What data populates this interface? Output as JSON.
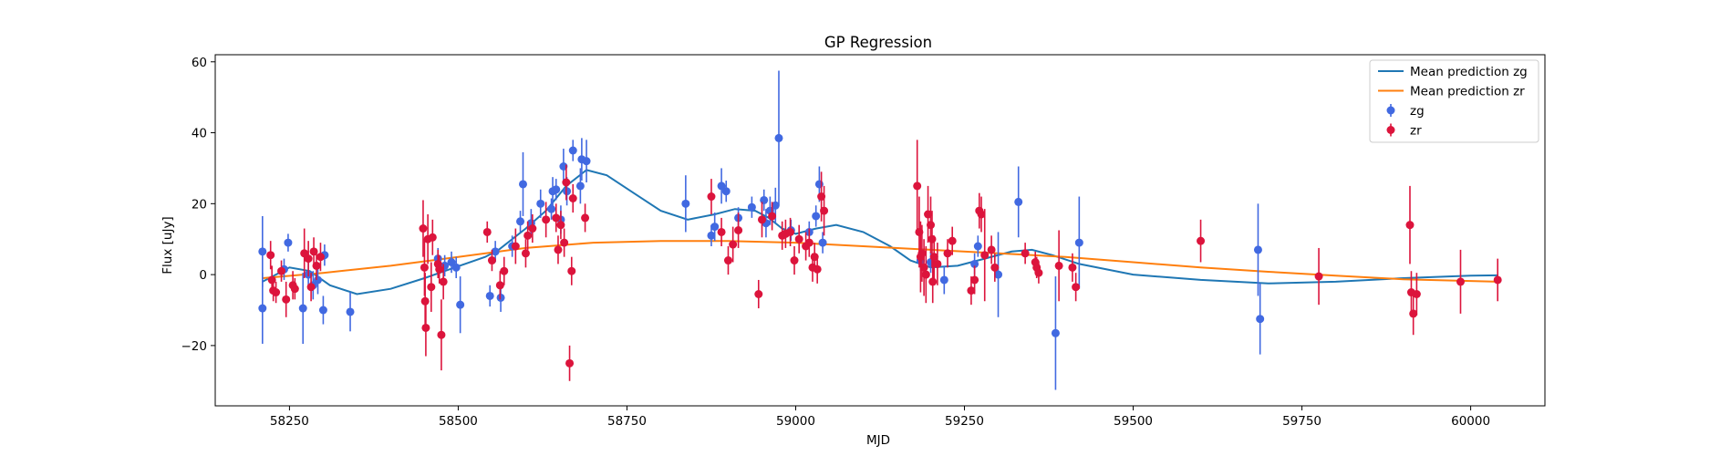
{
  "chart_data": {
    "type": "scatter",
    "title": "GP Regression",
    "xlabel": "MJD",
    "ylabel": "Flux [uJy]",
    "xlim": [
      58140,
      60110
    ],
    "ylim": [
      -37,
      62
    ],
    "xticks": [
      58250,
      58500,
      58750,
      59000,
      59250,
      59500,
      59750,
      60000
    ],
    "yticks": [
      -20,
      0,
      20,
      40,
      60
    ],
    "grid": false,
    "legend_position": "top-right",
    "colors": {
      "zg_points": "#4169e1",
      "zr_points": "#dc143c",
      "zg_mean": "#1f77b4",
      "zr_mean": "#ff7f0e"
    },
    "legend": [
      {
        "label": "Mean prediction zg",
        "kind": "line",
        "color": "#1f77b4"
      },
      {
        "label": "Mean prediction zr",
        "kind": "line",
        "color": "#ff7f0e"
      },
      {
        "label": "zg",
        "kind": "errorbar",
        "color": "#4169e1"
      },
      {
        "label": "zr",
        "kind": "errorbar",
        "color": "#dc143c"
      }
    ],
    "series": [
      {
        "name": "Mean prediction zg",
        "kind": "line",
        "color": "#1f77b4",
        "points": [
          [
            58210,
            -2
          ],
          [
            58250,
            2
          ],
          [
            58280,
            1
          ],
          [
            58310,
            -3
          ],
          [
            58350,
            -5.5
          ],
          [
            58400,
            -4
          ],
          [
            58450,
            -1
          ],
          [
            58480,
            1
          ],
          [
            58510,
            3
          ],
          [
            58540,
            5
          ],
          [
            58560,
            7
          ],
          [
            58600,
            13
          ],
          [
            58630,
            18
          ],
          [
            58660,
            25
          ],
          [
            58690,
            29.5
          ],
          [
            58720,
            28
          ],
          [
            58760,
            23
          ],
          [
            58800,
            18
          ],
          [
            58840,
            15.5
          ],
          [
            58880,
            17
          ],
          [
            58910,
            18.5
          ],
          [
            58940,
            18
          ],
          [
            58960,
            16
          ],
          [
            58980,
            13
          ],
          [
            59000,
            11.5
          ],
          [
            59030,
            13
          ],
          [
            59060,
            14
          ],
          [
            59100,
            12
          ],
          [
            59140,
            8
          ],
          [
            59170,
            4
          ],
          [
            59200,
            2
          ],
          [
            59240,
            2.5
          ],
          [
            59280,
            4.5
          ],
          [
            59320,
            6.5
          ],
          [
            59350,
            7
          ],
          [
            59380,
            5.5
          ],
          [
            59420,
            3
          ],
          [
            59500,
            0
          ],
          [
            59600,
            -1.5
          ],
          [
            59700,
            -2.5
          ],
          [
            59800,
            -2
          ],
          [
            59900,
            -1
          ],
          [
            60000,
            -0.3
          ],
          [
            60040,
            -0.2
          ]
        ]
      },
      {
        "name": "Mean prediction zr",
        "kind": "line",
        "color": "#ff7f0e",
        "points": [
          [
            58210,
            -1
          ],
          [
            58300,
            0.5
          ],
          [
            58400,
            2.5
          ],
          [
            58500,
            5
          ],
          [
            58600,
            7.5
          ],
          [
            58700,
            9
          ],
          [
            58800,
            9.5
          ],
          [
            58900,
            9.5
          ],
          [
            59000,
            9
          ],
          [
            59100,
            8
          ],
          [
            59200,
            7
          ],
          [
            59300,
            6
          ],
          [
            59400,
            5
          ],
          [
            59500,
            3.5
          ],
          [
            59600,
            2
          ],
          [
            59700,
            0.8
          ],
          [
            59800,
            -0.3
          ],
          [
            59900,
            -1.3
          ],
          [
            60000,
            -1.8
          ],
          [
            60040,
            -2
          ]
        ]
      },
      {
        "name": "zg",
        "kind": "errorbar",
        "color": "#4169e1",
        "points": [
          [
            58210,
            6.5,
            10
          ],
          [
            58210,
            -9.5,
            10
          ],
          [
            58242,
            1.5,
            3
          ],
          [
            58248,
            9,
            2.5
          ],
          [
            58270,
            -9.5,
            10
          ],
          [
            58278,
            0,
            4
          ],
          [
            58285,
            -3,
            4
          ],
          [
            58292,
            -1.5,
            4
          ],
          [
            58300,
            -10,
            4
          ],
          [
            58302,
            5.5,
            3
          ],
          [
            58340,
            -10.5,
            5.5
          ],
          [
            58470,
            4.5,
            3
          ],
          [
            58480,
            2.5,
            3
          ],
          [
            58490,
            3.5,
            3
          ],
          [
            58497,
            2,
            3
          ],
          [
            58503,
            -8.5,
            8
          ],
          [
            58547,
            -6,
            3
          ],
          [
            58555,
            6.5,
            3
          ],
          [
            58563,
            -6.5,
            4
          ],
          [
            58580,
            8,
            3
          ],
          [
            58592,
            15,
            3
          ],
          [
            58596,
            25.5,
            9
          ],
          [
            58608,
            14.5,
            4
          ],
          [
            58622,
            20,
            4
          ],
          [
            58638,
            18.5,
            3
          ],
          [
            58640,
            23.5,
            4
          ],
          [
            58645,
            24,
            3
          ],
          [
            58652,
            15.5,
            4
          ],
          [
            58656,
            30.5,
            5
          ],
          [
            58661,
            23.5,
            4
          ],
          [
            58670,
            35,
            3
          ],
          [
            58681,
            25,
            5
          ],
          [
            58683,
            32.5,
            6
          ],
          [
            58690,
            32,
            6
          ],
          [
            58837,
            20,
            8
          ],
          [
            58875,
            11,
            3
          ],
          [
            58880,
            13.5,
            4
          ],
          [
            58890,
            25,
            5
          ],
          [
            58897,
            23.5,
            3
          ],
          [
            58915,
            16,
            3
          ],
          [
            58935,
            19,
            3
          ],
          [
            58953,
            21,
            3
          ],
          [
            58956,
            14.5,
            4
          ],
          [
            58962,
            18,
            4
          ],
          [
            58970,
            19.5,
            5
          ],
          [
            58975,
            38.5,
            19
          ],
          [
            58993,
            12.5,
            3
          ],
          [
            59020,
            12,
            3
          ],
          [
            59030,
            16.5,
            3
          ],
          [
            59035,
            25.5,
            5
          ],
          [
            59040,
            9,
            3
          ],
          [
            59185,
            4,
            3
          ],
          [
            59200,
            3.5,
            3
          ],
          [
            59220,
            -1.5,
            4
          ],
          [
            59265,
            3,
            3
          ],
          [
            59270,
            8,
            3
          ],
          [
            59300,
            0,
            12
          ],
          [
            59330,
            20.5,
            10
          ],
          [
            59385,
            -16.5,
            16
          ],
          [
            59420,
            9,
            13
          ],
          [
            59685,
            7,
            13
          ],
          [
            59688,
            -12.5,
            10
          ]
        ]
      },
      {
        "name": "zr",
        "kind": "errorbar",
        "color": "#dc143c",
        "points": [
          [
            58222,
            5.5,
            4
          ],
          [
            58224,
            -1.5,
            4
          ],
          [
            58226,
            -4.5,
            3
          ],
          [
            58230,
            -5,
            3
          ],
          [
            58238,
            1,
            3
          ],
          [
            58245,
            -7,
            5
          ],
          [
            58255,
            -3,
            4
          ],
          [
            58258,
            -4,
            3
          ],
          [
            58272,
            6,
            7
          ],
          [
            58278,
            4.5,
            5
          ],
          [
            58282,
            -3.5,
            4
          ],
          [
            58286,
            6.5,
            4
          ],
          [
            58290,
            2.5,
            4
          ],
          [
            58296,
            5,
            4
          ],
          [
            58448,
            13,
            8
          ],
          [
            58450,
            2,
            8
          ],
          [
            58451,
            -7.5,
            8
          ],
          [
            58452,
            -15,
            8
          ],
          [
            58455,
            10,
            7
          ],
          [
            58460,
            -3.5,
            7
          ],
          [
            58462,
            10.5,
            5
          ],
          [
            58470,
            3,
            4
          ],
          [
            58472,
            1.5,
            4
          ],
          [
            58475,
            -17,
            10
          ],
          [
            58478,
            -2,
            5
          ],
          [
            58543,
            12,
            3
          ],
          [
            58550,
            4,
            3
          ],
          [
            58562,
            -3,
            4
          ],
          [
            58568,
            1,
            4
          ],
          [
            58585,
            8,
            5
          ],
          [
            58600,
            6,
            4
          ],
          [
            58603,
            11,
            4
          ],
          [
            58610,
            13,
            4
          ],
          [
            58630,
            15.5,
            5
          ],
          [
            58645,
            16,
            4
          ],
          [
            58648,
            7,
            4
          ],
          [
            58652,
            14,
            4
          ],
          [
            58657,
            9,
            4
          ],
          [
            58660,
            26,
            5
          ],
          [
            58668,
            1,
            4
          ],
          [
            58665,
            -25,
            5
          ],
          [
            58670,
            21.5,
            4
          ],
          [
            58688,
            16,
            4
          ],
          [
            58875,
            22,
            5
          ],
          [
            58890,
            12,
            4
          ],
          [
            58900,
            4,
            4
          ],
          [
            58907,
            8.5,
            5
          ],
          [
            58915,
            12.5,
            5
          ],
          [
            58945,
            -5.5,
            4
          ],
          [
            58950,
            15.5,
            5
          ],
          [
            58965,
            16.5,
            4
          ],
          [
            58980,
            11,
            4
          ],
          [
            58985,
            11.5,
            4
          ],
          [
            58992,
            12,
            4
          ],
          [
            58998,
            4,
            4
          ],
          [
            59005,
            10,
            4
          ],
          [
            59015,
            8,
            4
          ],
          [
            59020,
            9,
            4
          ],
          [
            59025,
            2,
            4
          ],
          [
            59028,
            5,
            4
          ],
          [
            59032,
            1.5,
            4
          ],
          [
            59038,
            22,
            7
          ],
          [
            59042,
            18,
            7
          ],
          [
            59180,
            25,
            13
          ],
          [
            59183,
            12,
            10
          ],
          [
            59185,
            5,
            10
          ],
          [
            59187,
            6,
            8
          ],
          [
            59190,
            2,
            8
          ],
          [
            59193,
            0,
            8
          ],
          [
            59196,
            17,
            8
          ],
          [
            59200,
            14,
            8
          ],
          [
            59202,
            10,
            8
          ],
          [
            59203,
            -2,
            6
          ],
          [
            59205,
            5,
            6
          ],
          [
            59210,
            3,
            6
          ],
          [
            59225,
            6,
            4
          ],
          [
            59232,
            9.5,
            4
          ],
          [
            59260,
            -4.5,
            4
          ],
          [
            59265,
            -1.5,
            4
          ],
          [
            59272,
            18,
            5
          ],
          [
            59275,
            17,
            5
          ],
          [
            59280,
            5.5,
            13
          ],
          [
            59290,
            7,
            4
          ],
          [
            59295,
            2,
            4
          ],
          [
            59340,
            6,
            3
          ],
          [
            59355,
            3.5,
            3
          ],
          [
            59357,
            2,
            3
          ],
          [
            59360,
            0.5,
            3
          ],
          [
            59390,
            2.5,
            10
          ],
          [
            59410,
            2,
            4
          ],
          [
            59415,
            -3.5,
            4
          ],
          [
            59600,
            9.5,
            6
          ],
          [
            59775,
            -0.5,
            8
          ],
          [
            59910,
            14,
            11
          ],
          [
            59912,
            -5,
            6
          ],
          [
            59915,
            -11,
            6
          ],
          [
            59920,
            -5.5,
            6
          ],
          [
            59985,
            -2,
            9
          ],
          [
            60040,
            -1.5,
            6
          ]
        ]
      }
    ]
  }
}
